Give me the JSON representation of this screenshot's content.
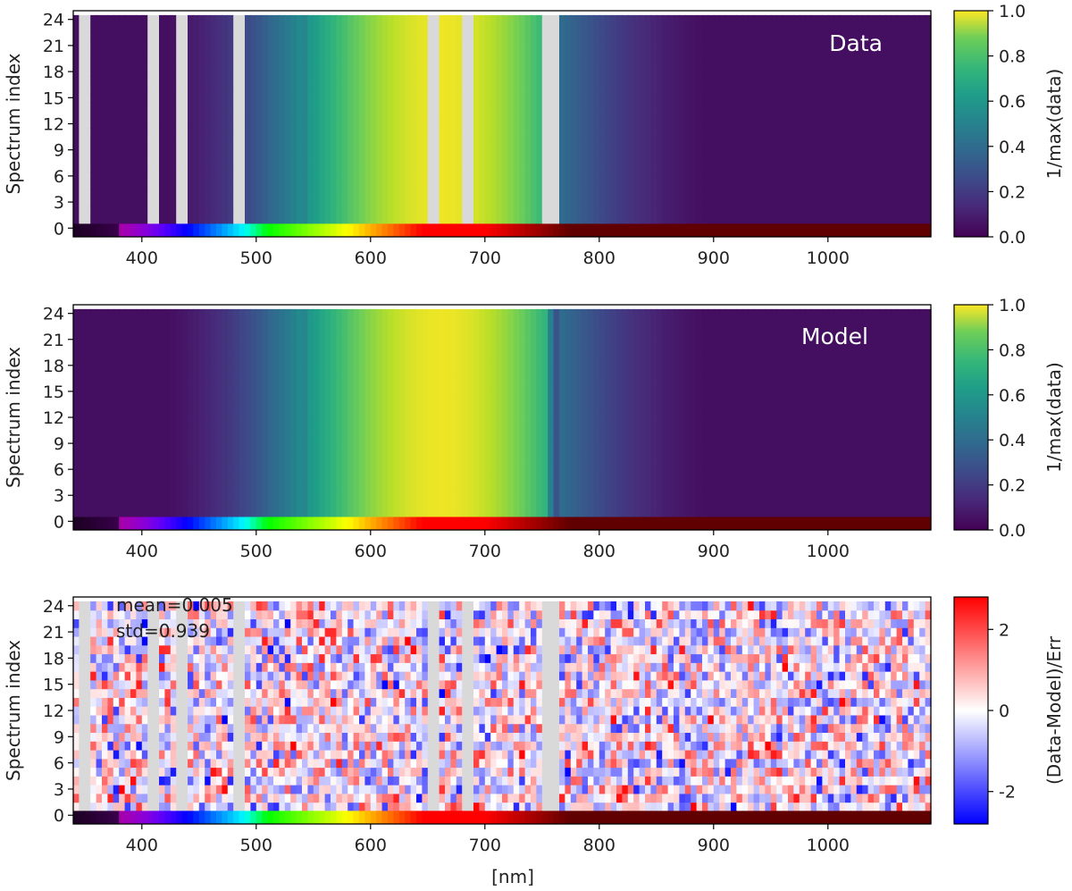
{
  "chart_data": [
    {
      "type": "heatmap",
      "panel": "top",
      "annotation": "Data",
      "ylabel": "Spectrum index",
      "xticks": [
        "400",
        "500",
        "600",
        "700",
        "800",
        "900",
        "1000"
      ],
      "xtick_values": [
        400,
        500,
        600,
        700,
        800,
        900,
        1000
      ],
      "yticks": [
        "0",
        "3",
        "6",
        "9",
        "12",
        "15",
        "18",
        "21",
        "24"
      ],
      "ytick_values": [
        0,
        3,
        6,
        9,
        12,
        15,
        18,
        21,
        24
      ],
      "xlim": [
        340,
        1090
      ],
      "ylim": [
        -1,
        25
      ],
      "masked_wavelength_ranges_nm": [
        [
          345,
          355
        ],
        [
          405,
          415
        ],
        [
          430,
          440
        ],
        [
          480,
          490
        ],
        [
          650,
          660
        ],
        [
          680,
          690
        ],
        [
          750,
          765
        ]
      ],
      "colorbar": {
        "label": "1/max(data)",
        "ticks": [
          "0.0",
          "0.2",
          "0.4",
          "0.6",
          "0.8",
          "1.0"
        ],
        "tick_values": [
          0,
          0.2,
          0.4,
          0.6,
          0.8,
          1.0
        ],
        "cmap": "viridis"
      }
    },
    {
      "type": "heatmap",
      "panel": "middle",
      "annotation": "Model",
      "ylabel": "Spectrum index",
      "xticks": [
        "400",
        "500",
        "600",
        "700",
        "800",
        "900",
        "1000"
      ],
      "xtick_values": [
        400,
        500,
        600,
        700,
        800,
        900,
        1000
      ],
      "yticks": [
        "0",
        "3",
        "6",
        "9",
        "12",
        "15",
        "18",
        "21",
        "24"
      ],
      "ytick_values": [
        0,
        3,
        6,
        9,
        12,
        15,
        18,
        21,
        24
      ],
      "xlim": [
        340,
        1090
      ],
      "ylim": [
        -1,
        25
      ],
      "colorbar": {
        "label": "1/max(data)",
        "ticks": [
          "0.0",
          "0.2",
          "0.4",
          "0.6",
          "0.8",
          "1.0"
        ],
        "tick_values": [
          0,
          0.2,
          0.4,
          0.6,
          0.8,
          1.0
        ],
        "cmap": "viridis"
      }
    },
    {
      "type": "heatmap",
      "panel": "bottom",
      "annotation_mean": "mean=0.005",
      "annotation_std": "std=0.939",
      "ylabel": "Spectrum index",
      "xlabel": "[nm]",
      "xticks": [
        "400",
        "500",
        "600",
        "700",
        "800",
        "900",
        "1000"
      ],
      "xtick_values": [
        400,
        500,
        600,
        700,
        800,
        900,
        1000
      ],
      "yticks": [
        "0",
        "3",
        "6",
        "9",
        "12",
        "15",
        "18",
        "21",
        "24"
      ],
      "ytick_values": [
        0,
        3,
        6,
        9,
        12,
        15,
        18,
        21,
        24
      ],
      "xlim": [
        340,
        1090
      ],
      "ylim": [
        -1,
        25
      ],
      "colorbar": {
        "label": "(Data-Model)/Err",
        "ticks": [
          "-2",
          "0",
          "2"
        ],
        "tick_values": [
          -2,
          0,
          2
        ],
        "range": [
          -2.8,
          2.8
        ],
        "cmap": "bwr"
      }
    }
  ],
  "colors": {
    "mask": "#d9d9d9",
    "axis": "#000000",
    "text": "#222222"
  }
}
